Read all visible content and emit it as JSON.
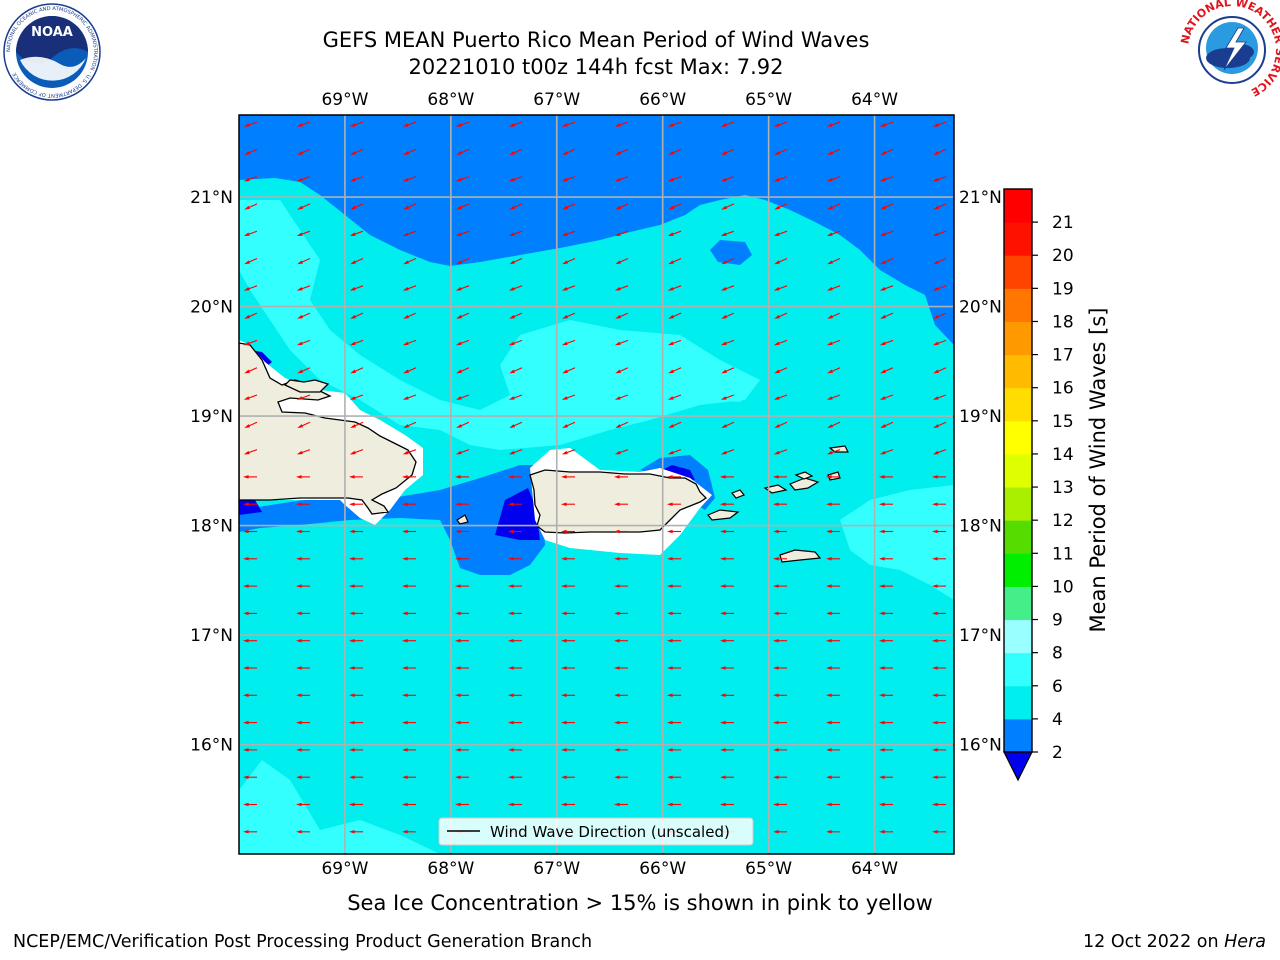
{
  "title": {
    "line1": "GEFS MEAN Puerto Rico Mean Period of Wind Waves",
    "line2": "20221010 t00z 144h fcst   Max: 7.92"
  },
  "subtitle": "Sea Ice Concentration > 15% is shown in pink to yellow",
  "footer": {
    "left": "NCEP/EMC/Verification Post Processing Product Generation Branch",
    "right_date": "12 Oct 2022 on ",
    "right_host": "Hera"
  },
  "map": {
    "lon_range": [
      -70.0,
      -63.25
    ],
    "lat_range": [
      15.0,
      21.75
    ],
    "lon_ticks": [
      "69°W",
      "68°W",
      "67°W",
      "66°W",
      "65°W",
      "64°W"
    ],
    "lon_values": [
      -69,
      -68,
      -67,
      -66,
      -65,
      -64
    ],
    "lat_ticks": [
      "21°N",
      "20°N",
      "19°N",
      "18°N",
      "17°N",
      "16°N"
    ],
    "lat_values": [
      21,
      20,
      19,
      18,
      17,
      16
    ],
    "grid": true,
    "land_color": "#efedde",
    "coast_color": "#000000",
    "arrow_color": "#ff0000",
    "legend_label": "Wind Wave Direction (unscaled)",
    "legend_placement": "bottom-center"
  },
  "colorbar": {
    "label": "Mean Period of Wind Waves [s]",
    "ticks": [
      "2",
      "4",
      "6",
      "8",
      "9",
      "10",
      "11",
      "12",
      "13",
      "14",
      "15",
      "16",
      "17",
      "18",
      "19",
      "20",
      "21"
    ],
    "colors": [
      "#0000ee",
      "#0080ff",
      "#00eeee",
      "#33ffff",
      "#99ffff",
      "#44ee88",
      "#00ee00",
      "#55dd00",
      "#aaee00",
      "#ddff00",
      "#ffff00",
      "#ffdd00",
      "#ffbb00",
      "#ff9900",
      "#ff7700",
      "#ff4400",
      "#ff1100",
      "#ff0000"
    ],
    "extend": "min"
  },
  "logos": {
    "noaa_text": "NOAA",
    "noaa_ring": "NATIONAL OCEANIC AND ATMOSPHERIC ADMINISTRATION · U.S. DEPARTMENT OF COMMERCE",
    "nws_ring": "NATIONAL WEATHER SERVICE"
  }
}
